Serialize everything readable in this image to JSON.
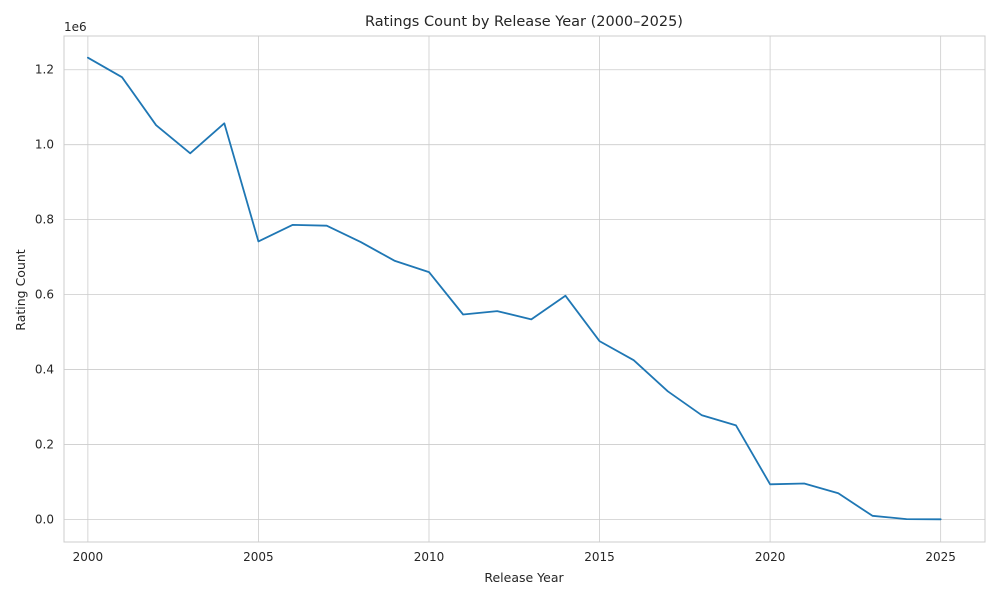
{
  "chart_data": {
    "type": "line",
    "title": "Ratings Count by Release Year (2000–2025)",
    "xlabel": "Release Year",
    "ylabel": "Rating Count",
    "offset_label": "1e6",
    "xlim": [
      1999.3,
      2026.3
    ],
    "ylim": [
      -60000,
      1290000
    ],
    "x_ticks": [
      2000,
      2005,
      2010,
      2015,
      2020,
      2025
    ],
    "y_ticks": [
      0,
      200000,
      400000,
      600000,
      800000,
      1000000,
      1200000
    ],
    "y_tick_labels": [
      "0.0",
      "0.2",
      "0.4",
      "0.6",
      "0.8",
      "1.0",
      "1.2"
    ],
    "grid": true,
    "series": [
      {
        "color": "#1f77b4",
        "x": [
          2000,
          2001,
          2002,
          2003,
          2004,
          2005,
          2006,
          2007,
          2008,
          2009,
          2010,
          2011,
          2012,
          2013,
          2014,
          2015,
          2016,
          2017,
          2018,
          2019,
          2020,
          2021,
          2022,
          2023,
          2024,
          2025
        ],
        "y": [
          1232000,
          1180000,
          1052000,
          977000,
          1057000,
          742000,
          786000,
          784000,
          740000,
          690000,
          660000,
          547000,
          556000,
          534000,
          597000,
          476000,
          425000,
          342000,
          278000,
          251000,
          94000,
          96000,
          70000,
          10000,
          1000,
          500
        ]
      }
    ]
  }
}
